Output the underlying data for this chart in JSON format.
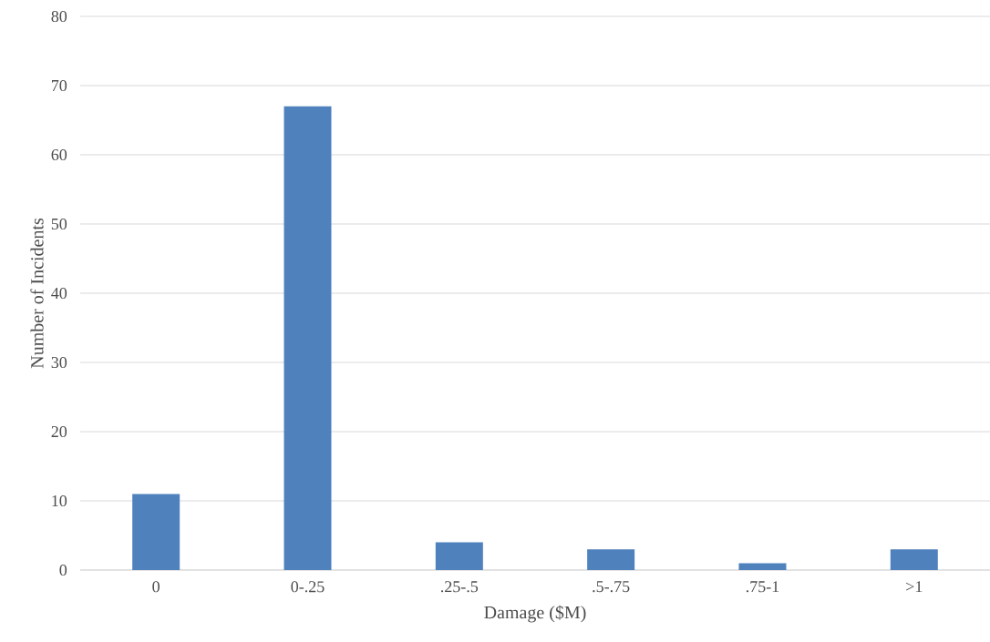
{
  "chart_data": {
    "type": "bar",
    "xlabel": "Damage ($M)",
    "ylabel": "Number of Incidents",
    "categories": [
      "0",
      "0-.25",
      ".25-.5",
      ".5-.75",
      ".75-1",
      ">1"
    ],
    "values": [
      11,
      67,
      4,
      3,
      1,
      3
    ],
    "color": "#4f81bd",
    "ylim": [
      0,
      80
    ],
    "yticks": [
      0,
      10,
      20,
      30,
      40,
      50,
      60,
      70,
      80
    ],
    "grid": "y"
  }
}
